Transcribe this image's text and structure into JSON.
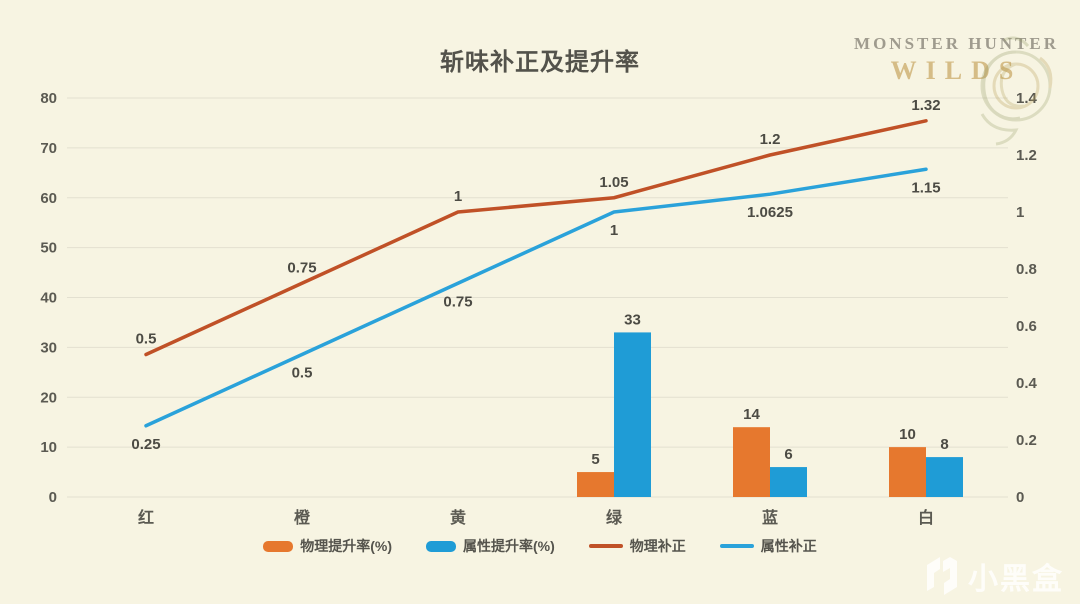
{
  "title": "斩味补正及提升率",
  "logo": {
    "line1": "MONSTER HUNTER",
    "line2": "WILDS"
  },
  "watermark": {
    "text": "小黑盒"
  },
  "colors": {
    "background": "#f7f4e2",
    "grid": "#e3e0d0",
    "axis_text": "#5b5a52",
    "data_label": "#4c4b44",
    "bar_orange": "#e6782e",
    "bar_blue": "#1f9cd6",
    "line_red": "#c05127",
    "line_blue": "#2aa2da"
  },
  "chart_data": {
    "type": "combo-bar-line",
    "title": "斩味补正及提升率",
    "categories": [
      "红",
      "橙",
      "黄",
      "绿",
      "蓝",
      "白"
    ],
    "bar_series": [
      {
        "name": "物理提升率(%)",
        "axis": "left",
        "color": "#e6782e",
        "values": [
          null,
          null,
          null,
          5,
          14,
          10
        ],
        "label_position": "above"
      },
      {
        "name": "属性提升率(%)",
        "axis": "left",
        "color": "#1f9cd6",
        "values": [
          null,
          null,
          null,
          33,
          6,
          8
        ],
        "label_position": "above"
      }
    ],
    "line_series": [
      {
        "name": "物理补正",
        "axis": "right",
        "color": "#c05127",
        "values": [
          0.5,
          0.75,
          1,
          1.05,
          1.2,
          1.32
        ],
        "label_position": "above"
      },
      {
        "name": "属性补正",
        "axis": "right",
        "color": "#2aa2da",
        "values": [
          0.25,
          0.5,
          0.75,
          1,
          1.0625,
          1.15
        ],
        "label_position": "below"
      }
    ],
    "left_axis": {
      "min": 0,
      "max": 80,
      "ticks": [
        0,
        10,
        20,
        30,
        40,
        50,
        60,
        70,
        80
      ]
    },
    "right_axis": {
      "min": 0,
      "max": 1.4,
      "ticks": [
        0,
        0.2,
        0.4,
        0.6,
        0.8,
        1,
        1.2,
        1.4
      ],
      "tick_labels": [
        "0",
        "0.2",
        "0.4",
        "0.6",
        "0.8",
        "1",
        "1.2",
        "1.4"
      ]
    },
    "grid": true,
    "legend_position": "bottom"
  }
}
